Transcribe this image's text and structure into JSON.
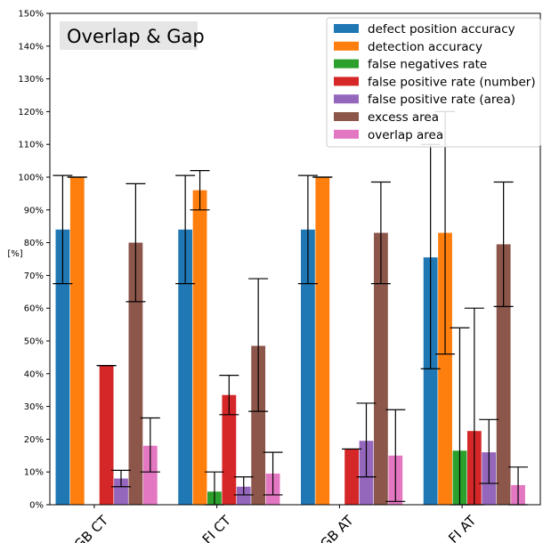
{
  "chart_data": {
    "type": "bar",
    "title_box": "Overlap & Gap",
    "ylabel": "[%]",
    "xlabel": "",
    "ylim": [
      0,
      150
    ],
    "yticks": [
      0,
      10,
      20,
      30,
      40,
      50,
      60,
      70,
      80,
      90,
      100,
      110,
      120,
      130,
      140,
      150
    ],
    "ytick_labels": [
      "0%",
      "10%",
      "20%",
      "30%",
      "40%",
      "50%",
      "60%",
      "70%",
      "80%",
      "90%",
      "100%",
      "110%",
      "120%",
      "130%",
      "140%",
      "150%"
    ],
    "categories": [
      "GB CT",
      "FI CT",
      "GB AT",
      "FI AT"
    ],
    "legend_position": "top-right",
    "grid": false,
    "series": [
      {
        "name": "defect position accuracy",
        "color": "#1f77b4",
        "values": [
          84,
          84,
          84,
          75.5
        ],
        "err_low": [
          67.5,
          67.5,
          67.5,
          41.5
        ],
        "err_high": [
          100.5,
          100.5,
          100.5,
          110
        ]
      },
      {
        "name": "detection accuracy",
        "color": "#ff7f0e",
        "values": [
          100,
          96,
          100,
          83
        ],
        "err_low": [
          100,
          90,
          100,
          46
        ],
        "err_high": [
          100,
          102,
          100,
          120
        ]
      },
      {
        "name": "false negatives rate",
        "color": "#2ca02c",
        "values": [
          0,
          4,
          0,
          16.5
        ],
        "err_low": [
          null,
          0,
          null,
          0
        ],
        "err_high": [
          null,
          10,
          null,
          54
        ]
      },
      {
        "name": "false positive rate (number)",
        "color": "#d62728",
        "values": [
          42.5,
          33.5,
          17,
          22.5
        ],
        "err_low": [
          42.5,
          27.5,
          17,
          0
        ],
        "err_high": [
          42.5,
          39.5,
          17,
          60
        ]
      },
      {
        "name": "false positive rate (area)",
        "color": "#9467bd",
        "values": [
          8,
          5.5,
          19.5,
          16
        ],
        "err_low": [
          5.5,
          3,
          8.5,
          6.5
        ],
        "err_high": [
          10.5,
          8.5,
          31,
          26
        ]
      },
      {
        "name": "excess area",
        "color": "#8c564b",
        "values": [
          80,
          48.5,
          83,
          79.5
        ],
        "err_low": [
          62,
          28.5,
          67.5,
          60.5
        ],
        "err_high": [
          98,
          69,
          98.5,
          98.5
        ]
      },
      {
        "name": "overlap area",
        "color": "#e377c2",
        "values": [
          18,
          9.5,
          15,
          6
        ],
        "err_low": [
          10,
          3,
          1,
          0
        ],
        "err_high": [
          26.5,
          16,
          29,
          11.5
        ]
      }
    ]
  }
}
